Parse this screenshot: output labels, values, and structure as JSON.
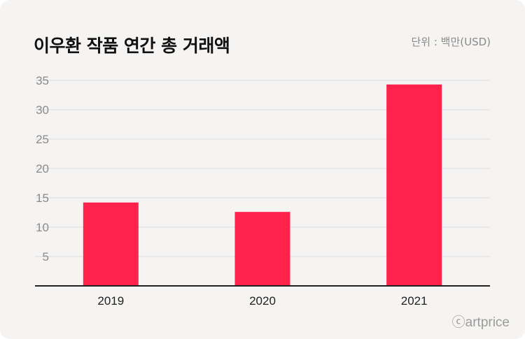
{
  "title": "이우환 작품 연간 총 거래액",
  "unit_label": "단위 : 백만(USD)",
  "source": "ⓒartprice",
  "colors": {
    "bar": "#ff224b",
    "grid": "#dddddd",
    "axis": "#222222"
  },
  "chart_data": {
    "type": "bar",
    "title": "이우환 작품 연간 총 거래액",
    "categories": [
      "2019",
      "2020",
      "2021"
    ],
    "values": [
      14.2,
      12.6,
      34.3
    ],
    "ylim": [
      0,
      35
    ],
    "yticks": [
      "5",
      "10",
      "15",
      "20",
      "25",
      "30",
      "35"
    ],
    "grid": true,
    "xlabel": "",
    "ylabel": ""
  }
}
